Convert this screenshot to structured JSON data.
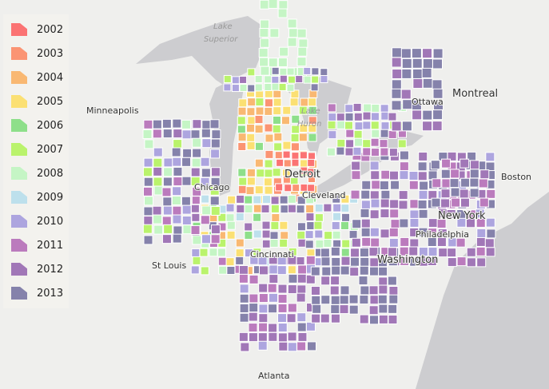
{
  "legend": [
    {
      "year": "2002",
      "color": "#fb7373"
    },
    {
      "year": "2003",
      "color": "#fb9473"
    },
    {
      "year": "2004",
      "color": "#f9b872"
    },
    {
      "year": "2005",
      "color": "#fbe073"
    },
    {
      "year": "2006",
      "color": "#8edf8a"
    },
    {
      "year": "2007",
      "color": "#baf36c"
    },
    {
      "year": "2008",
      "color": "#c5f5c5"
    },
    {
      "year": "2009",
      "color": "#bde0ec"
    },
    {
      "year": "2010",
      "color": "#ada5df"
    },
    {
      "year": "2011",
      "color": "#bb7bbd"
    },
    {
      "year": "2012",
      "color": "#a177b7"
    },
    {
      "year": "2013",
      "color": "#8582ab"
    }
  ],
  "map": {
    "lakes": [
      "Lake Superior",
      "Lake Huron"
    ],
    "cities": [
      "Minneapolis",
      "Chicago",
      "Detroit",
      "Cleveland",
      "St Louis",
      "Cincinnati",
      "Ottawa",
      "Montreal",
      "Boston",
      "New York",
      "Philadelphia",
      "Washington",
      "Atlanta"
    ],
    "land_color": "#efefed",
    "water_color": "#cdcdd0"
  }
}
